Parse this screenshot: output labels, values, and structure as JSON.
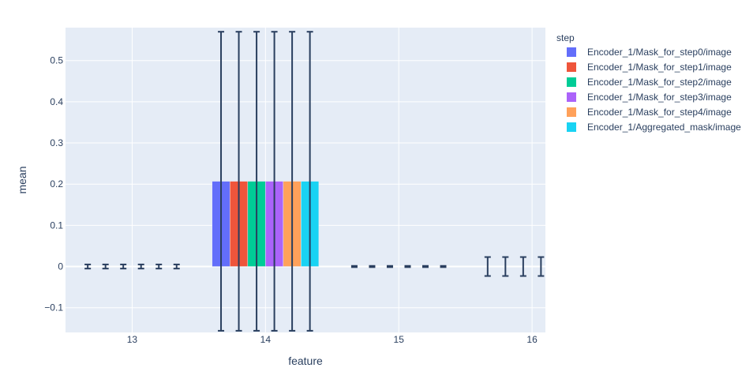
{
  "chart_data": {
    "type": "bar",
    "xlabel": "feature",
    "ylabel": "mean",
    "x": [
      13,
      14,
      15,
      16
    ],
    "xticks": [
      "13",
      "14",
      "15",
      "16"
    ],
    "xlim": [
      12.5,
      16.1
    ],
    "ylim": [
      -0.16,
      0.58
    ],
    "yticks": [
      -0.1,
      0,
      0.1,
      0.2,
      0.3,
      0.4,
      0.5
    ],
    "ytick_labels": [
      "−0.1",
      "0",
      "0.1",
      "0.2",
      "0.3",
      "0.4",
      "0.5"
    ],
    "legend": {
      "title": "step",
      "placement": "right"
    },
    "grid": true,
    "series": [
      {
        "name": "Encoder_1/Mask_for_step0/image",
        "color": "#636efa",
        "values": [
          0,
          0.207,
          0,
          0
        ],
        "error": [
          0.005,
          0.363,
          0.0015,
          0.023
        ]
      },
      {
        "name": "Encoder_1/Mask_for_step1/image",
        "color": "#EF553B",
        "values": [
          0,
          0.207,
          0,
          0
        ],
        "error": [
          0.005,
          0.363,
          0.0015,
          0.023
        ]
      },
      {
        "name": "Encoder_1/Mask_for_step2/image",
        "color": "#00cc96",
        "values": [
          0,
          0.207,
          0,
          0
        ],
        "error": [
          0.005,
          0.363,
          0.0015,
          0.023
        ]
      },
      {
        "name": "Encoder_1/Mask_for_step3/image",
        "color": "#ab63fa",
        "values": [
          0,
          0.207,
          0,
          0
        ],
        "error": [
          0.005,
          0.363,
          0.0015,
          0.023
        ]
      },
      {
        "name": "Encoder_1/Mask_for_step4/image",
        "color": "#FFA15A",
        "values": [
          0,
          0.207,
          0,
          0
        ],
        "error": [
          0.005,
          0.363,
          0.0015,
          0.023
        ]
      },
      {
        "name": "Encoder_1/Aggregated_mask/image",
        "color": "#19d3f3",
        "values": [
          0,
          0.207,
          0,
          0
        ],
        "error": [
          0.005,
          0.363,
          0.0015,
          0.023
        ]
      }
    ],
    "errorbar_color": "#2a3f5f",
    "plot_background": "#e5ecf6"
  }
}
